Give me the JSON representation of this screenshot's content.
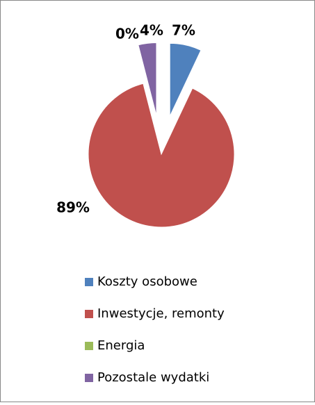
{
  "chart_data": {
    "type": "pie",
    "categories": [
      "Koszty osobowe",
      "Inwestycje, remonty",
      "Energia",
      "Pozostale wydatki"
    ],
    "values": [
      7,
      89,
      0,
      4
    ],
    "value_labels": [
      "7%",
      "89%",
      "0%",
      "4%"
    ],
    "colors": [
      "#4f81bd",
      "#c0504d",
      "#9bbb59",
      "#8064a2"
    ],
    "legend": "bottom"
  }
}
